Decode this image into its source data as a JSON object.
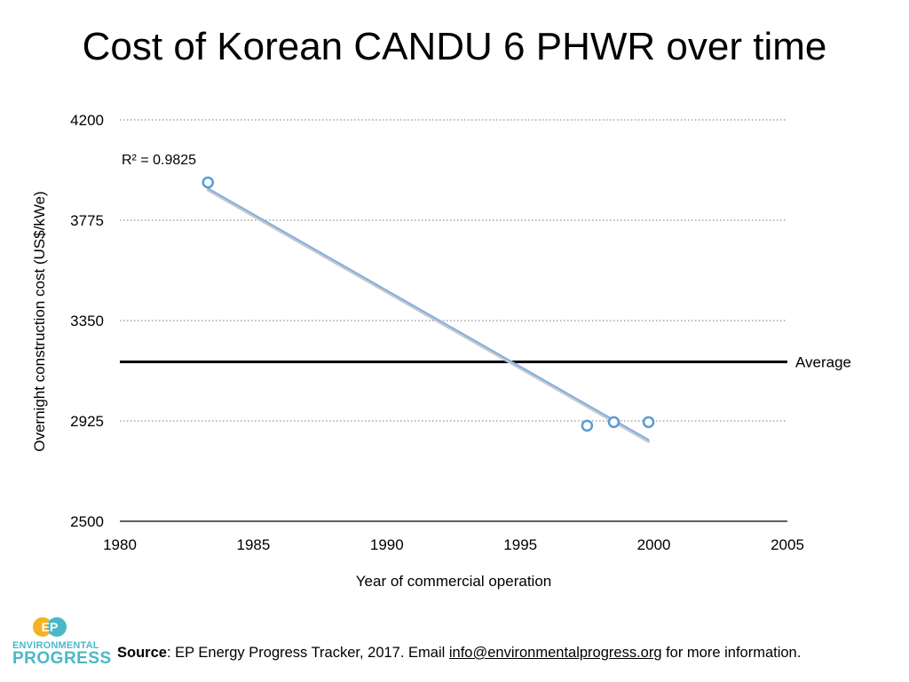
{
  "title": "Cost of Korean CANDU 6 PHWR over time",
  "chart_data": {
    "type": "scatter",
    "title": "Cost of Korean CANDU 6 PHWR over time",
    "xlabel": "Year of commercial operation",
    "ylabel": "Overnight construction cost (US$/kWe)",
    "xlim": [
      1980,
      2005
    ],
    "ylim": [
      2500,
      4200
    ],
    "xticks": [
      1980,
      1985,
      1990,
      1995,
      2000,
      2005
    ],
    "yticks": [
      2500,
      2925,
      3350,
      3775,
      4200
    ],
    "grid": "horizontal dotted",
    "points": [
      {
        "x": 1983.3,
        "y": 3935
      },
      {
        "x": 1997.5,
        "y": 2905
      },
      {
        "x": 1998.5,
        "y": 2920
      },
      {
        "x": 1999.8,
        "y": 2920
      }
    ],
    "trendline": {
      "x_start": 1983.3,
      "x_end": 1999.8,
      "y_start": 3910,
      "y_end": 2845,
      "label": "R² = 0.9825"
    },
    "average": {
      "label": "Average",
      "y": 3175
    },
    "colors": {
      "points": "#5b9bd5",
      "trendline": "#7fb0e6",
      "average": "#000000"
    }
  },
  "footer": {
    "source_label": "Source",
    "source_text": ": EP Energy Progress Tracker, 2017. Email ",
    "email": "info@environmentalprogress.org",
    "suffix": " for more information."
  },
  "logo": {
    "mark": "EP",
    "line1": "ENVIRONMENTAL",
    "line2": "PROGRESS"
  }
}
